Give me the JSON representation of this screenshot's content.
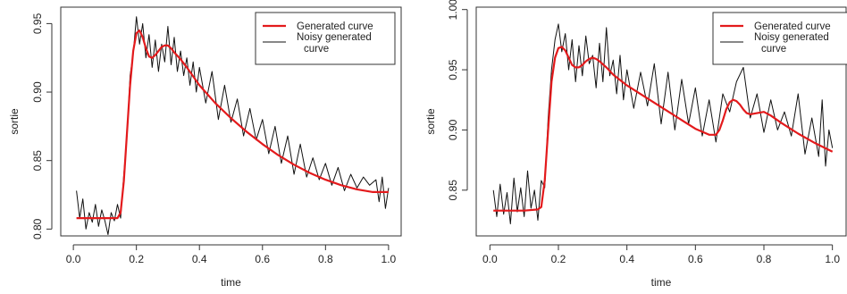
{
  "colors": {
    "generated": "#e31a1c",
    "noisy": "#111111",
    "frame": "#333333",
    "background": "#ffffff"
  },
  "chart_data": [
    {
      "type": "line",
      "title": "",
      "xlabel": "time",
      "ylabel": "sortie",
      "xlim": [
        -0.04,
        1.04
      ],
      "ylim": [
        0.795,
        0.962
      ],
      "xticks": [
        0.0,
        0.2,
        0.4,
        0.6,
        0.8,
        1.0
      ],
      "xtick_labels": [
        "0.0",
        "0.2",
        "0.4",
        "0.6",
        "0.8",
        "1.0"
      ],
      "yticks": [
        0.8,
        0.85,
        0.9,
        0.95
      ],
      "ytick_labels": [
        "0.80",
        "0.85",
        "0.90",
        "0.95"
      ],
      "grid": false,
      "legend_position": "top-right",
      "legend": [
        "Generated curve",
        "Noisy generated curve"
      ],
      "series": [
        {
          "name": "Generated curve",
          "color": "#e31a1c",
          "x": [
            0.01,
            0.05,
            0.1,
            0.14,
            0.15,
            0.16,
            0.17,
            0.18,
            0.19,
            0.2,
            0.21,
            0.22,
            0.23,
            0.24,
            0.25,
            0.26,
            0.27,
            0.28,
            0.29,
            0.3,
            0.31,
            0.32,
            0.34,
            0.36,
            0.4,
            0.45,
            0.5,
            0.55,
            0.6,
            0.65,
            0.7,
            0.75,
            0.8,
            0.85,
            0.9,
            0.95,
            1.0
          ],
          "y": [
            0.808,
            0.808,
            0.808,
            0.808,
            0.812,
            0.835,
            0.87,
            0.905,
            0.93,
            0.943,
            0.945,
            0.94,
            0.932,
            0.926,
            0.925,
            0.927,
            0.93,
            0.933,
            0.934,
            0.934,
            0.932,
            0.929,
            0.924,
            0.918,
            0.905,
            0.892,
            0.881,
            0.871,
            0.862,
            0.854,
            0.847,
            0.841,
            0.836,
            0.832,
            0.829,
            0.827,
            0.827
          ]
        },
        {
          "name": "Noisy generated curve",
          "color": "#111111",
          "x": [
            0.01,
            0.02,
            0.03,
            0.04,
            0.05,
            0.06,
            0.07,
            0.08,
            0.09,
            0.1,
            0.11,
            0.12,
            0.13,
            0.14,
            0.15,
            0.16,
            0.17,
            0.18,
            0.19,
            0.2,
            0.21,
            0.22,
            0.23,
            0.24,
            0.25,
            0.26,
            0.27,
            0.28,
            0.29,
            0.3,
            0.31,
            0.32,
            0.33,
            0.34,
            0.35,
            0.36,
            0.37,
            0.38,
            0.39,
            0.4,
            0.42,
            0.44,
            0.46,
            0.48,
            0.5,
            0.52,
            0.54,
            0.56,
            0.58,
            0.6,
            0.62,
            0.64,
            0.66,
            0.68,
            0.7,
            0.72,
            0.74,
            0.76,
            0.78,
            0.8,
            0.82,
            0.84,
            0.86,
            0.88,
            0.9,
            0.92,
            0.94,
            0.96,
            0.97,
            0.98,
            0.99,
            1.0
          ],
          "y": [
            0.828,
            0.808,
            0.822,
            0.8,
            0.812,
            0.805,
            0.818,
            0.802,
            0.814,
            0.806,
            0.796,
            0.812,
            0.806,
            0.818,
            0.808,
            0.84,
            0.868,
            0.912,
            0.928,
            0.955,
            0.935,
            0.95,
            0.925,
            0.942,
            0.918,
            0.938,
            0.915,
            0.935,
            0.922,
            0.948,
            0.92,
            0.94,
            0.915,
            0.93,
            0.912,
            0.925,
            0.905,
            0.922,
            0.9,
            0.918,
            0.892,
            0.915,
            0.88,
            0.905,
            0.878,
            0.895,
            0.868,
            0.888,
            0.865,
            0.88,
            0.855,
            0.875,
            0.848,
            0.868,
            0.84,
            0.862,
            0.838,
            0.852,
            0.836,
            0.848,
            0.832,
            0.845,
            0.828,
            0.84,
            0.83,
            0.838,
            0.832,
            0.836,
            0.82,
            0.838,
            0.815,
            0.83
          ]
        }
      ]
    },
    {
      "type": "line",
      "title": "",
      "xlabel": "time",
      "ylabel": "sortie",
      "xlim": [
        -0.04,
        1.04
      ],
      "ylim": [
        0.812,
        1.002
      ],
      "xticks": [
        0.0,
        0.2,
        0.4,
        0.6,
        0.8,
        1.0
      ],
      "xtick_labels": [
        "0.0",
        "0.2",
        "0.4",
        "0.6",
        "0.8",
        "1.0"
      ],
      "yticks": [
        0.85,
        0.9,
        0.95,
        1.0
      ],
      "ytick_labels": [
        "0.85",
        "0.90",
        "0.95",
        "1.00"
      ],
      "grid": false,
      "legend_position": "top-right",
      "legend": [
        "Generated curve",
        "Noisy generated curve"
      ],
      "series": [
        {
          "name": "Generated curve",
          "color": "#e31a1c",
          "x": [
            0.01,
            0.05,
            0.1,
            0.14,
            0.15,
            0.16,
            0.17,
            0.18,
            0.19,
            0.2,
            0.21,
            0.22,
            0.23,
            0.24,
            0.25,
            0.26,
            0.27,
            0.28,
            0.29,
            0.3,
            0.31,
            0.32,
            0.34,
            0.36,
            0.4,
            0.45,
            0.5,
            0.55,
            0.6,
            0.64,
            0.66,
            0.67,
            0.68,
            0.69,
            0.7,
            0.71,
            0.72,
            0.73,
            0.74,
            0.75,
            0.76,
            0.78,
            0.8,
            0.82,
            0.85,
            0.9,
            0.95,
            1.0
          ],
          "y": [
            0.833,
            0.833,
            0.833,
            0.834,
            0.836,
            0.858,
            0.9,
            0.94,
            0.96,
            0.968,
            0.969,
            0.966,
            0.96,
            0.954,
            0.952,
            0.952,
            0.954,
            0.957,
            0.959,
            0.96,
            0.959,
            0.957,
            0.952,
            0.946,
            0.937,
            0.928,
            0.919,
            0.91,
            0.901,
            0.896,
            0.896,
            0.9,
            0.908,
            0.917,
            0.923,
            0.925,
            0.924,
            0.921,
            0.917,
            0.914,
            0.913,
            0.914,
            0.915,
            0.912,
            0.906,
            0.897,
            0.889,
            0.882
          ]
        },
        {
          "name": "Noisy generated curve",
          "color": "#111111",
          "x": [
            0.01,
            0.02,
            0.03,
            0.04,
            0.05,
            0.06,
            0.07,
            0.08,
            0.09,
            0.1,
            0.11,
            0.12,
            0.13,
            0.14,
            0.15,
            0.16,
            0.17,
            0.18,
            0.19,
            0.2,
            0.21,
            0.22,
            0.23,
            0.24,
            0.25,
            0.26,
            0.27,
            0.28,
            0.29,
            0.3,
            0.31,
            0.32,
            0.33,
            0.34,
            0.35,
            0.36,
            0.37,
            0.38,
            0.39,
            0.4,
            0.42,
            0.44,
            0.46,
            0.48,
            0.5,
            0.52,
            0.54,
            0.56,
            0.58,
            0.6,
            0.62,
            0.64,
            0.66,
            0.68,
            0.7,
            0.72,
            0.74,
            0.76,
            0.78,
            0.8,
            0.82,
            0.84,
            0.86,
            0.88,
            0.9,
            0.92,
            0.94,
            0.96,
            0.97,
            0.98,
            0.99,
            1.0
          ],
          "y": [
            0.85,
            0.828,
            0.855,
            0.83,
            0.848,
            0.822,
            0.86,
            0.832,
            0.852,
            0.828,
            0.866,
            0.835,
            0.85,
            0.825,
            0.858,
            0.852,
            0.91,
            0.95,
            0.975,
            0.988,
            0.965,
            0.98,
            0.95,
            0.975,
            0.94,
            0.97,
            0.945,
            0.978,
            0.955,
            0.962,
            0.935,
            0.972,
            0.94,
            0.985,
            0.945,
            0.958,
            0.93,
            0.962,
            0.925,
            0.95,
            0.918,
            0.948,
            0.92,
            0.955,
            0.905,
            0.948,
            0.9,
            0.942,
            0.905,
            0.935,
            0.895,
            0.925,
            0.89,
            0.93,
            0.915,
            0.94,
            0.952,
            0.91,
            0.93,
            0.898,
            0.925,
            0.9,
            0.915,
            0.895,
            0.93,
            0.88,
            0.91,
            0.878,
            0.925,
            0.87,
            0.9,
            0.885
          ]
        }
      ]
    }
  ]
}
